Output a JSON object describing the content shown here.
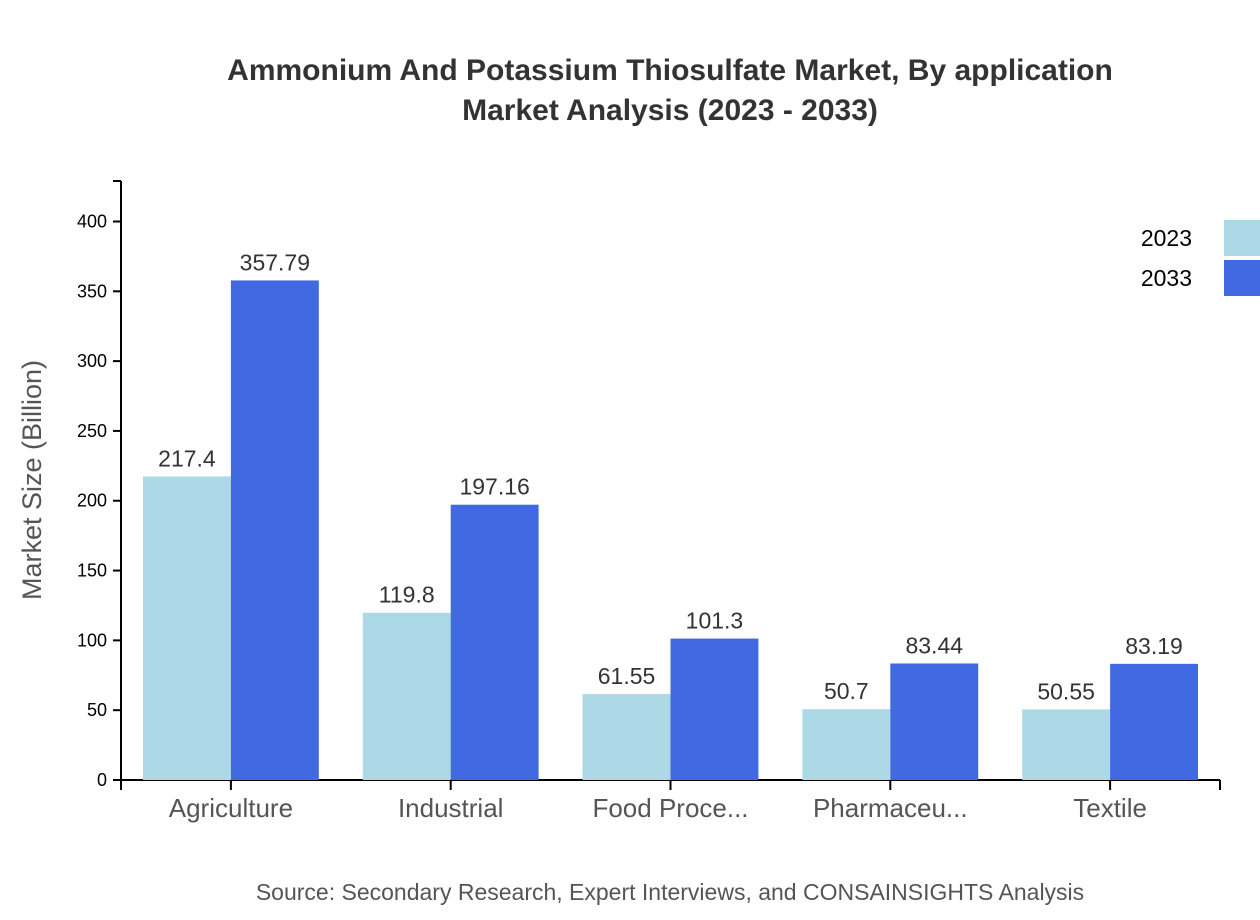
{
  "chart_data": {
    "type": "bar",
    "title": "Ammonium And Potassium Thiosulfate Market, By application",
    "subtitle": "Market Analysis (2023 - 2033)",
    "xlabel": "",
    "ylabel": "Market Size (Billion)",
    "categories": [
      "Agriculture",
      "Industrial",
      "Food Proce...",
      "Pharmaceu...",
      "Textile"
    ],
    "series": [
      {
        "name": "2023",
        "color": "#add8e6",
        "values": [
          217.4,
          119.8,
          61.55,
          50.7,
          50.55
        ]
      },
      {
        "name": "2033",
        "color": "#4169e1",
        "values": [
          357.79,
          197.16,
          101.3,
          83.44,
          83.19
        ]
      }
    ],
    "ylim": [
      0,
      429
    ],
    "yticks": [
      0,
      50,
      100,
      150,
      200,
      250,
      300,
      350,
      400
    ],
    "grid": false,
    "legend_position": "top-right",
    "source": "Source: Secondary Research, Expert Interviews, and CONSAINSIGHTS Analysis"
  }
}
